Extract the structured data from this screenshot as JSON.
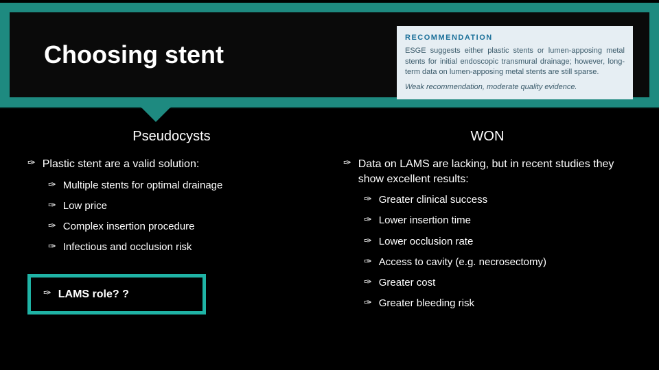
{
  "colors": {
    "teal": "#1e8a80",
    "teal_border": "#1fb3a5",
    "bg": "#000000",
    "text": "#ffffff",
    "rec_bg": "#e6eef3",
    "rec_heading": "#1a6f99",
    "rec_text": "#3a5a6a"
  },
  "title": "Choosing stent",
  "recommendation": {
    "heading": "RECOMMENDATION",
    "body": "ESGE suggests either plastic stents or lumen-apposing metal stents for initial endoscopic transmural drainage; however, long-term data on lumen-apposing metal stents are still sparse.",
    "tail": "Weak recommendation, moderate quality evidence."
  },
  "left": {
    "title": "Pseudocysts",
    "lead": "Plastic stent are a valid solution:",
    "items": [
      "Multiple stents for optimal drainage",
      "Low price",
      "Complex insertion procedure",
      "Infectious and occlusion risk"
    ],
    "highlight": "LAMS role? ?"
  },
  "right": {
    "title": "WON",
    "lead": "Data on LAMS are lacking, but in recent studies they show excellent results:",
    "items": [
      "Greater clinical success",
      "Lower insertion time",
      "Lower occlusion rate",
      "Access to cavity (e.g. necrosectomy)",
      "Greater cost",
      "Greater bleeding risk"
    ]
  }
}
